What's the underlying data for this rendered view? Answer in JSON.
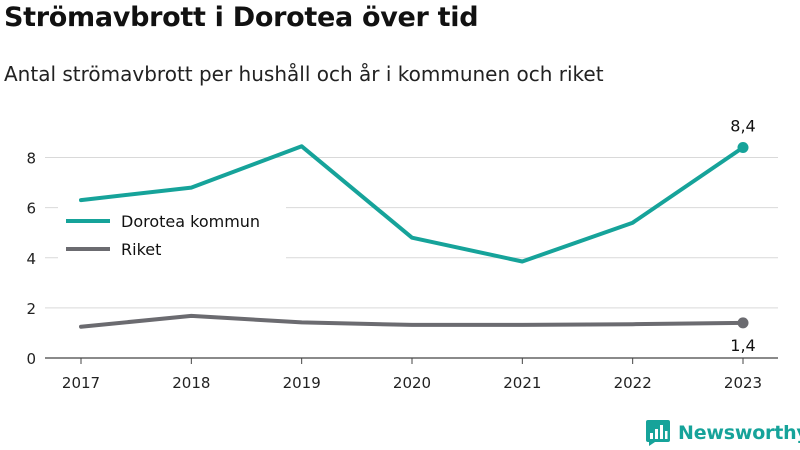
{
  "chart_data": {
    "type": "line",
    "title": "Strömavbrott i Dorotea över tid",
    "subtitle": "Antal strömavbrott per hushåll och år i kommunen och riket",
    "xlabel": "",
    "ylabel": "",
    "categories": [
      "2017",
      "2018",
      "2019",
      "2020",
      "2021",
      "2022",
      "2023"
    ],
    "ylim": [
      0,
      8.9
    ],
    "yticks": [
      0,
      2,
      4,
      6,
      8
    ],
    "grid": true,
    "legend": "left",
    "series": [
      {
        "name": "Dorotea kommun",
        "color": "#16a39a",
        "values": [
          6.3,
          6.8,
          8.45,
          4.8,
          3.85,
          5.4,
          8.4
        ],
        "end_label": "8,4"
      },
      {
        "name": "Riket",
        "color": "#6b6b70",
        "values": [
          1.25,
          1.68,
          1.42,
          1.32,
          1.32,
          1.35,
          1.4
        ],
        "end_label": "1,4"
      }
    ]
  },
  "brand": {
    "name": "Newsworthy",
    "logo_icon": "bar-chart-speech-bubble-icon",
    "color": "#16a39a"
  }
}
